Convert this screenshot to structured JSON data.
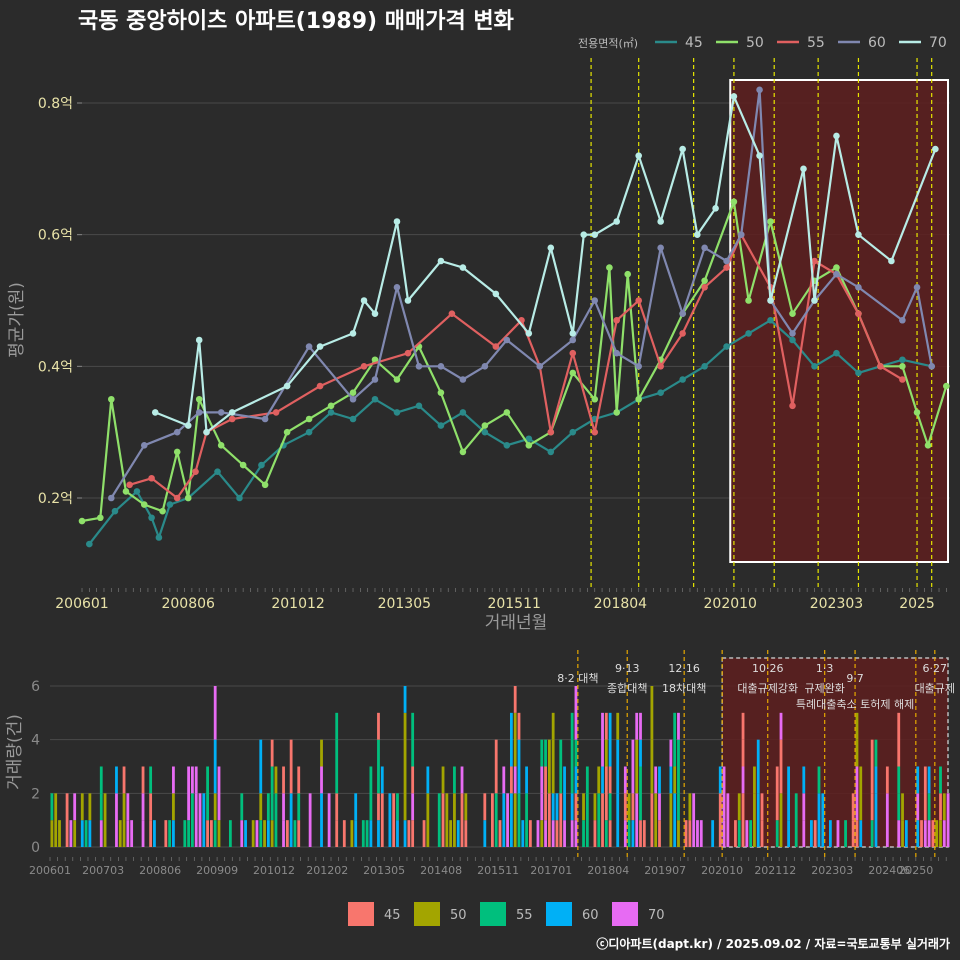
{
  "title": "국동 중앙하이츠 아파트(1989) 매매가격 변화",
  "footer": "ⓒ디아파트(dapt.kr) / 2025.09.02 / 자료=국토교통부 실거래가",
  "colors": {
    "background": "#2b2b2b",
    "grid": "#4a4a4a",
    "axis_text": "#e8e2a8",
    "axis_text_small": "#8a8a8a",
    "title_text": "#ffffff",
    "vline": "#e6e600",
    "vline_bottom": "#e6a800",
    "highlight_fill": "#5e1f1f",
    "highlight_border": "#ffffff"
  },
  "chart_data": [
    {
      "type": "line",
      "title": "국동 중앙하이츠 아파트(1989) 매매가격 변화",
      "xlabel": "거래년월",
      "ylabel": "평균가(원)",
      "x_ticks": [
        "200601",
        "200806",
        "201012",
        "201305",
        "201511",
        "201804",
        "202010",
        "202303",
        "2025"
      ],
      "x_range": [
        "2006-01",
        "2025-09"
      ],
      "y_ticks": [
        "0.2억",
        "0.4억",
        "0.6억",
        "0.8억"
      ],
      "ylim": [
        0.07,
        0.87
      ],
      "grid": true,
      "legend_title": "전용면적(㎡)",
      "legend_position": "top-right",
      "series": [
        {
          "name": "45",
          "color": "#2a8a8a",
          "points": [
            [
              "2006-03",
              0.13
            ],
            [
              "2006-10",
              0.18
            ],
            [
              "2007-04",
              0.21
            ],
            [
              "2007-08",
              0.17
            ],
            [
              "2007-10",
              0.14
            ],
            [
              "2008-01",
              0.19
            ],
            [
              "2008-06",
              0.2
            ],
            [
              "2009-02",
              0.24
            ],
            [
              "2009-08",
              0.2
            ],
            [
              "2010-02",
              0.25
            ],
            [
              "2010-08",
              0.28
            ],
            [
              "2011-03",
              0.3
            ],
            [
              "2011-09",
              0.33
            ],
            [
              "2012-03",
              0.32
            ],
            [
              "2012-09",
              0.35
            ],
            [
              "2013-03",
              0.33
            ],
            [
              "2013-09",
              0.34
            ],
            [
              "2014-03",
              0.31
            ],
            [
              "2014-09",
              0.33
            ],
            [
              "2015-03",
              0.3
            ],
            [
              "2015-09",
              0.28
            ],
            [
              "2016-03",
              0.29
            ],
            [
              "2016-09",
              0.27
            ],
            [
              "2017-03",
              0.3
            ],
            [
              "2017-09",
              0.32
            ],
            [
              "2018-03",
              0.33
            ],
            [
              "2018-09",
              0.35
            ],
            [
              "2019-03",
              0.36
            ],
            [
              "2019-09",
              0.38
            ],
            [
              "2020-03",
              0.4
            ],
            [
              "2020-09",
              0.43
            ],
            [
              "2021-03",
              0.45
            ],
            [
              "2021-09",
              0.47
            ],
            [
              "2022-03",
              0.44
            ],
            [
              "2022-09",
              0.4
            ],
            [
              "2023-03",
              0.42
            ],
            [
              "2023-09",
              0.39
            ],
            [
              "2024-03",
              0.4
            ],
            [
              "2024-09",
              0.41
            ],
            [
              "2025-05",
              0.4
            ]
          ]
        },
        {
          "name": "50",
          "color": "#8fe06a",
          "points": [
            [
              "2006-01",
              0.165
            ],
            [
              "2006-06",
              0.17
            ],
            [
              "2006-09",
              0.35
            ],
            [
              "2007-01",
              0.21
            ],
            [
              "2007-06",
              0.19
            ],
            [
              "2007-11",
              0.18
            ],
            [
              "2008-03",
              0.27
            ],
            [
              "2008-06",
              0.2
            ],
            [
              "2008-09",
              0.35
            ],
            [
              "2009-03",
              0.28
            ],
            [
              "2009-09",
              0.25
            ],
            [
              "2010-03",
              0.22
            ],
            [
              "2010-09",
              0.3
            ],
            [
              "2011-03",
              0.32
            ],
            [
              "2011-09",
              0.34
            ],
            [
              "2012-03",
              0.36
            ],
            [
              "2012-09",
              0.41
            ],
            [
              "2013-03",
              0.38
            ],
            [
              "2013-09",
              0.43
            ],
            [
              "2014-03",
              0.36
            ],
            [
              "2014-09",
              0.27
            ],
            [
              "2015-03",
              0.31
            ],
            [
              "2015-09",
              0.33
            ],
            [
              "2016-03",
              0.28
            ],
            [
              "2016-09",
              0.3
            ],
            [
              "2017-03",
              0.39
            ],
            [
              "2017-09",
              0.35
            ],
            [
              "2018-01",
              0.55
            ],
            [
              "2018-03",
              0.33
            ],
            [
              "2018-06",
              0.54
            ],
            [
              "2018-09",
              0.35
            ],
            [
              "2019-03",
              0.41
            ],
            [
              "2019-09",
              0.48
            ],
            [
              "2020-03",
              0.53
            ],
            [
              "2020-11",
              0.65
            ],
            [
              "2021-03",
              0.5
            ],
            [
              "2021-09",
              0.62
            ],
            [
              "2022-03",
              0.48
            ],
            [
              "2022-09",
              0.53
            ],
            [
              "2023-03",
              0.55
            ],
            [
              "2023-09",
              0.48
            ],
            [
              "2024-03",
              0.4
            ],
            [
              "2024-09",
              0.4
            ],
            [
              "2025-01",
              0.33
            ],
            [
              "2025-04",
              0.28
            ],
            [
              "2025-09",
              0.37
            ]
          ]
        },
        {
          "name": "55",
          "color": "#e06060",
          "points": [
            [
              "2007-02",
              0.22
            ],
            [
              "2007-08",
              0.23
            ],
            [
              "2008-03",
              0.2
            ],
            [
              "2008-08",
              0.24
            ],
            [
              "2008-11",
              0.3
            ],
            [
              "2009-06",
              0.32
            ],
            [
              "2010-06",
              0.33
            ],
            [
              "2011-06",
              0.37
            ],
            [
              "2012-06",
              0.4
            ],
            [
              "2013-06",
              0.42
            ],
            [
              "2014-06",
              0.48
            ],
            [
              "2015-06",
              0.43
            ],
            [
              "2016-01",
              0.47
            ],
            [
              "2016-06",
              0.4
            ],
            [
              "2016-09",
              0.3
            ],
            [
              "2017-03",
              0.42
            ],
            [
              "2017-09",
              0.3
            ],
            [
              "2018-03",
              0.47
            ],
            [
              "2018-09",
              0.5
            ],
            [
              "2019-03",
              0.4
            ],
            [
              "2019-09",
              0.45
            ],
            [
              "2020-03",
              0.52
            ],
            [
              "2020-09",
              0.55
            ],
            [
              "2021-01",
              0.6
            ],
            [
              "2021-09",
              0.52
            ],
            [
              "2022-03",
              0.34
            ],
            [
              "2022-09",
              0.56
            ],
            [
              "2023-03",
              0.54
            ],
            [
              "2023-09",
              0.48
            ],
            [
              "2024-03",
              0.4
            ],
            [
              "2024-09",
              0.38
            ]
          ]
        },
        {
          "name": "60",
          "color": "#8088b0",
          "points": [
            [
              "2006-09",
              0.2
            ],
            [
              "2007-06",
              0.28
            ],
            [
              "2008-03",
              0.3
            ],
            [
              "2008-09",
              0.33
            ],
            [
              "2009-03",
              0.33
            ],
            [
              "2010-03",
              0.32
            ],
            [
              "2011-03",
              0.43
            ],
            [
              "2012-03",
              0.35
            ],
            [
              "2012-09",
              0.38
            ],
            [
              "2013-03",
              0.52
            ],
            [
              "2013-09",
              0.4
            ],
            [
              "2014-03",
              0.4
            ],
            [
              "2014-09",
              0.38
            ],
            [
              "2015-03",
              0.4
            ],
            [
              "2015-09",
              0.44
            ],
            [
              "2016-06",
              0.4
            ],
            [
              "2017-03",
              0.44
            ],
            [
              "2017-09",
              0.5
            ],
            [
              "2018-03",
              0.42
            ],
            [
              "2018-09",
              0.4
            ],
            [
              "2019-03",
              0.58
            ],
            [
              "2019-09",
              0.48
            ],
            [
              "2020-03",
              0.58
            ],
            [
              "2020-09",
              0.56
            ],
            [
              "2021-01",
              0.6
            ],
            [
              "2021-06",
              0.82
            ],
            [
              "2021-09",
              0.5
            ],
            [
              "2022-03",
              0.45
            ],
            [
              "2022-09",
              0.5
            ],
            [
              "2023-03",
              0.54
            ],
            [
              "2023-09",
              0.52
            ],
            [
              "2024-09",
              0.47
            ],
            [
              "2025-01",
              0.52
            ],
            [
              "2025-05",
              0.4
            ]
          ]
        },
        {
          "name": "70",
          "color": "#b8ece6",
          "points": [
            [
              "2007-09",
              0.33
            ],
            [
              "2008-06",
              0.31
            ],
            [
              "2008-09",
              0.44
            ],
            [
              "2008-11",
              0.3
            ],
            [
              "2009-06",
              0.33
            ],
            [
              "2010-09",
              0.37
            ],
            [
              "2011-06",
              0.43
            ],
            [
              "2012-03",
              0.45
            ],
            [
              "2012-06",
              0.5
            ],
            [
              "2012-09",
              0.48
            ],
            [
              "2013-03",
              0.62
            ],
            [
              "2013-06",
              0.5
            ],
            [
              "2014-03",
              0.56
            ],
            [
              "2014-09",
              0.55
            ],
            [
              "2015-06",
              0.51
            ],
            [
              "2016-03",
              0.45
            ],
            [
              "2016-09",
              0.58
            ],
            [
              "2017-03",
              0.45
            ],
            [
              "2017-06",
              0.6
            ],
            [
              "2017-09",
              0.6
            ],
            [
              "2018-03",
              0.62
            ],
            [
              "2018-09",
              0.72
            ],
            [
              "2019-03",
              0.62
            ],
            [
              "2019-09",
              0.73
            ],
            [
              "2020-01",
              0.6
            ],
            [
              "2020-06",
              0.64
            ],
            [
              "2020-11",
              0.81
            ],
            [
              "2021-06",
              0.72
            ],
            [
              "2021-09",
              0.5
            ],
            [
              "2022-06",
              0.7
            ],
            [
              "2022-09",
              0.5
            ],
            [
              "2023-03",
              0.75
            ],
            [
              "2023-09",
              0.6
            ],
            [
              "2024-06",
              0.56
            ],
            [
              "2025-06",
              0.73
            ]
          ]
        }
      ],
      "vlines": [
        "2017-08",
        "2018-09",
        "2019-12",
        "2020-11",
        "2021-10",
        "2022-10",
        "2023-09",
        "2025-01",
        "2025-05"
      ],
      "highlight_range": [
        "2020-10",
        "2025-09"
      ]
    },
    {
      "type": "bar",
      "ylabel": "거래량(건)",
      "x_ticks": [
        "200601",
        "200703",
        "200806",
        "200909",
        "201012",
        "201202",
        "201305",
        "201408",
        "201511",
        "201701",
        "201804",
        "201907",
        "202010",
        "202112",
        "202303",
        "202406",
        "20250"
      ],
      "y_ticks": [
        "0",
        "2",
        "4",
        "6"
      ],
      "ylim": [
        0,
        7
      ],
      "grid": true,
      "stacked": true,
      "legend_position": "bottom",
      "series_names": [
        "45",
        "50",
        "55",
        "60",
        "70"
      ],
      "series_colors": [
        "#f8766d",
        "#a3a500",
        "#00bf7d",
        "#00b0f6",
        "#e76bf3"
      ],
      "annotations": [
        {
          "date": "2017-08",
          "label": "8·2 대책",
          "row": 1
        },
        {
          "date": "2018-09",
          "label": "9·13",
          "label2": "종합대책",
          "row": 0
        },
        {
          "date": "2019-12",
          "label": "12·16",
          "label2": "18차대책",
          "row": 0
        },
        {
          "date": "2020-10",
          "label": "",
          "row": 0
        },
        {
          "date": "2021-10",
          "label": "10·26",
          "label2": "대출규제강화",
          "row": 0
        },
        {
          "date": "2023-01",
          "label": "1·3",
          "label2": "규제완화",
          "row": 0
        },
        {
          "date": "2023-09",
          "label": "9·7",
          "label2": "특례대출축소 토허제 해제",
          "row": 1
        },
        {
          "date": "2025-06",
          "label": "6·27",
          "label2": "대출규제",
          "row": 0
        }
      ],
      "vlines": [
        "2017-08",
        "2018-09",
        "2019-12",
        "2020-10",
        "2021-10",
        "2023-01",
        "2023-09",
        "2025-01",
        "2025-06"
      ],
      "highlight_range": [
        "2020-10",
        "2025-09"
      ]
    }
  ]
}
